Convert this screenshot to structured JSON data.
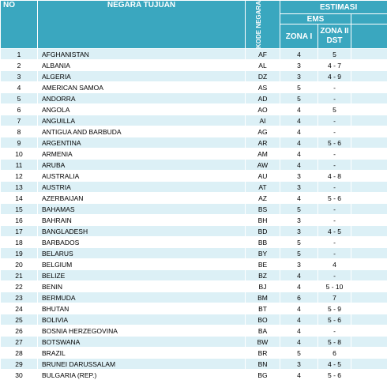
{
  "header": {
    "no": "NO",
    "negara_tujuan": "NEGARA TUJUAN",
    "kode_negara": "KODE NEGARA",
    "estimasi": "ESTIMASI",
    "ems": "EMS",
    "zona_i": "ZONA I",
    "zona_ii_dst": "ZONA II DST"
  },
  "colors": {
    "header_bg": "#3aa7bf",
    "row_alt_bg": "#dcf0f6"
  },
  "rows": [
    {
      "no": "1",
      "negara": "AFGHANISTAN",
      "kode": "AF",
      "zona1": "4",
      "zona2": "5"
    },
    {
      "no": "2",
      "negara": "ALBANIA",
      "kode": "AL",
      "zona1": "3",
      "zona2": "4 - 7"
    },
    {
      "no": "3",
      "negara": "ALGERIA",
      "kode": "DZ",
      "zona1": "3",
      "zona2": "4 - 9"
    },
    {
      "no": "4",
      "negara": "AMERICAN SAMOA",
      "kode": "AS",
      "zona1": "5",
      "zona2": "-"
    },
    {
      "no": "5",
      "negara": "ANDORRA",
      "kode": "AD",
      "zona1": "5",
      "zona2": "-"
    },
    {
      "no": "6",
      "negara": "ANGOLA",
      "kode": "AO",
      "zona1": "4",
      "zona2": "5"
    },
    {
      "no": "7",
      "negara": "ANGUILLA",
      "kode": "AI",
      "zona1": "4",
      "zona2": "-"
    },
    {
      "no": "8",
      "negara": "ANTIGUA AND BARBUDA",
      "kode": "AG",
      "zona1": "4",
      "zona2": "-"
    },
    {
      "no": "9",
      "negara": "ARGENTINA",
      "kode": "AR",
      "zona1": "4",
      "zona2": "5 - 6"
    },
    {
      "no": "10",
      "negara": "ARMENIA",
      "kode": "AM",
      "zona1": "4",
      "zona2": "-"
    },
    {
      "no": "11",
      "negara": "ARUBA",
      "kode": "AW",
      "zona1": "4",
      "zona2": "-"
    },
    {
      "no": "12",
      "negara": "AUSTRALIA",
      "kode": "AU",
      "zona1": "3",
      "zona2": "4 - 8"
    },
    {
      "no": "13",
      "negara": "AUSTRIA",
      "kode": "AT",
      "zona1": "3",
      "zona2": "-"
    },
    {
      "no": "14",
      "negara": "AZERBAIJAN",
      "kode": "AZ",
      "zona1": "4",
      "zona2": "5 - 6"
    },
    {
      "no": "15",
      "negara": "BAHAMAS",
      "kode": "BS",
      "zona1": "5",
      "zona2": "-"
    },
    {
      "no": "16",
      "negara": "BAHRAIN",
      "kode": "BH",
      "zona1": "3",
      "zona2": "-"
    },
    {
      "no": "17",
      "negara": "BANGLADESH",
      "kode": "BD",
      "zona1": "3",
      "zona2": "4 - 5"
    },
    {
      "no": "18",
      "negara": "BARBADOS",
      "kode": "BB",
      "zona1": "5",
      "zona2": "-"
    },
    {
      "no": "19",
      "negara": "BELARUS",
      "kode": "BY",
      "zona1": "5",
      "zona2": "-"
    },
    {
      "no": "20",
      "negara": "BELGIUM",
      "kode": "BE",
      "zona1": "3",
      "zona2": "4"
    },
    {
      "no": "21",
      "negara": "BELIZE",
      "kode": "BZ",
      "zona1": "4",
      "zona2": "-"
    },
    {
      "no": "22",
      "negara": "BENIN",
      "kode": "BJ",
      "zona1": "4",
      "zona2": "5 - 10"
    },
    {
      "no": "23",
      "negara": "BERMUDA",
      "kode": "BM",
      "zona1": "6",
      "zona2": "7"
    },
    {
      "no": "24",
      "negara": "BHUTAN",
      "kode": "BT",
      "zona1": "4",
      "zona2": "5 - 9"
    },
    {
      "no": "25",
      "negara": "BOLIVIA",
      "kode": "BO",
      "zona1": "4",
      "zona2": "5 - 6"
    },
    {
      "no": "26",
      "negara": "BOSNIA HERZEGOVINA",
      "kode": "BA",
      "zona1": "4",
      "zona2": "-"
    },
    {
      "no": "27",
      "negara": "BOTSWANA",
      "kode": "BW",
      "zona1": "4",
      "zona2": "5 - 8"
    },
    {
      "no": "28",
      "negara": "BRAZIL",
      "kode": "BR",
      "zona1": "5",
      "zona2": "6"
    },
    {
      "no": "29",
      "negara": "BRUNEI DARUSSALAM",
      "kode": "BN",
      "zona1": "3",
      "zona2": "4 - 5"
    },
    {
      "no": "30",
      "negara": "BULGARIA (REP.)",
      "kode": "BG",
      "zona1": "4",
      "zona2": "5 - 6"
    }
  ]
}
